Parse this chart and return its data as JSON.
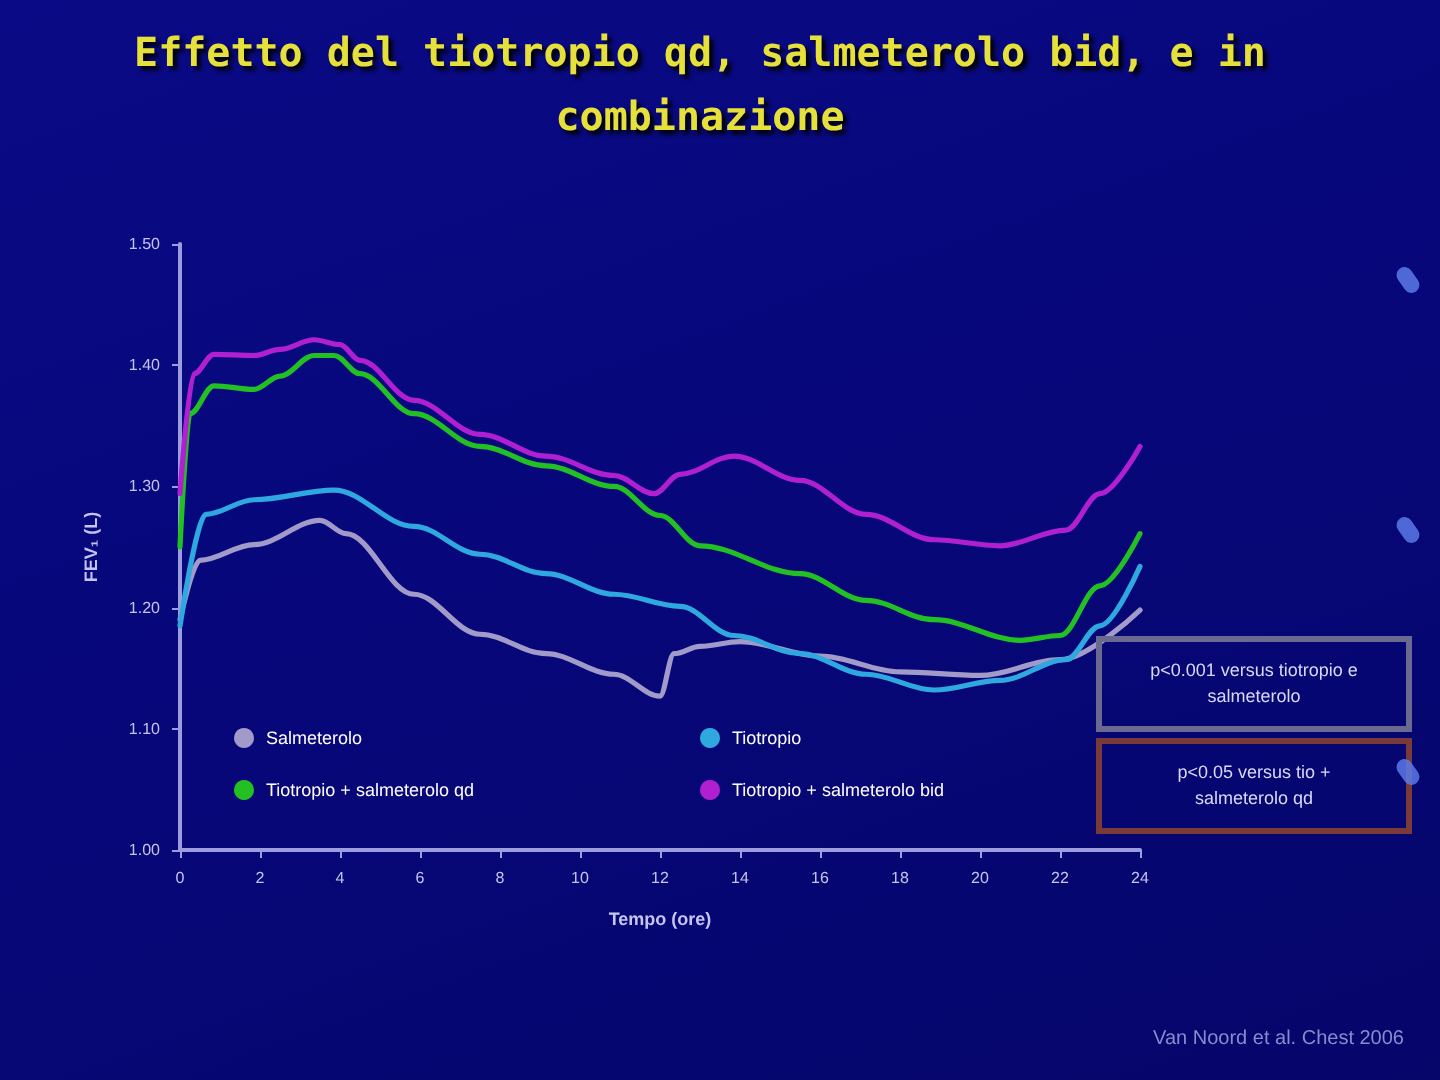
{
  "chart_data": {
    "type": "line",
    "title": "Effetto del tiotropio qd, salmeterolo bid, e in combinazione",
    "xlabel": "Tempo (ore)",
    "ylabel": "FEV₁ (L)",
    "xlim": [
      0,
      24
    ],
    "xticks": [
      0,
      2,
      4,
      6,
      8,
      10,
      12,
      14,
      16,
      18,
      20,
      22,
      24
    ],
    "ylim": [
      1.0,
      1.5
    ],
    "yticks": [
      {
        "value": 1.0,
        "label": "1.00"
      },
      {
        "value": 1.1,
        "label": "1.10"
      },
      {
        "value": 1.2,
        "label": "1.20"
      },
      {
        "value": 1.3,
        "label": "1.30"
      },
      {
        "value": 1.4,
        "label": "1.40"
      },
      {
        "value": 1.5,
        "label": "1.50"
      }
    ],
    "legend": "bottom",
    "marker": "none",
    "line_style": "solid",
    "series": [
      {
        "name": "Salmeterolo",
        "color": "#a29ac8",
        "x": [
          0,
          0.5,
          1.85,
          3.5,
          4.15,
          5.85,
          7.5,
          9.15,
          10.85,
          12,
          12.35,
          13,
          14,
          16,
          18,
          20,
          22,
          24
        ],
        "values": [
          1.19,
          1.239,
          1.252,
          1.272,
          1.261,
          1.211,
          1.178,
          1.162,
          1.145,
          1.127,
          1.162,
          1.168,
          1.172,
          1.16,
          1.147,
          1.144,
          1.157,
          1.198
        ]
      },
      {
        "name": "Tiotropio",
        "color": "#2fa8e0",
        "x": [
          0,
          0.65,
          1.85,
          3.85,
          5.85,
          7.5,
          9.15,
          10.85,
          12.5,
          13.85,
          15.5,
          17.15,
          18.85,
          20.5,
          22.15,
          23,
          24
        ],
        "values": [
          1.185,
          1.277,
          1.289,
          1.297,
          1.267,
          1.244,
          1.228,
          1.211,
          1.201,
          1.177,
          1.162,
          1.145,
          1.132,
          1.14,
          1.157,
          1.185,
          1.234
        ]
      },
      {
        "name": "Tiotropio + salmeterolo qd",
        "color": "#22c022",
        "x": [
          0,
          0.25,
          0.85,
          1.85,
          2.5,
          3.35,
          3.85,
          4.5,
          5.85,
          7.5,
          9.15,
          10.85,
          12,
          13,
          15.5,
          17.15,
          18.85,
          21,
          22,
          23,
          24
        ],
        "values": [
          1.25,
          1.36,
          1.383,
          1.38,
          1.391,
          1.408,
          1.408,
          1.393,
          1.36,
          1.333,
          1.317,
          1.3,
          1.276,
          1.251,
          1.228,
          1.206,
          1.19,
          1.173,
          1.177,
          1.218,
          1.261
        ]
      },
      {
        "name": "Tiotropio + salmeterolo bid",
        "color": "#b020d0",
        "x": [
          0,
          0.35,
          0.85,
          1.85,
          2.5,
          3.35,
          4,
          4.5,
          5.85,
          7.5,
          9.15,
          10.85,
          11.85,
          12.5,
          13.85,
          15.5,
          17.15,
          18.85,
          20.5,
          22.15,
          23,
          24
        ],
        "values": [
          1.294,
          1.393,
          1.409,
          1.408,
          1.413,
          1.421,
          1.417,
          1.404,
          1.371,
          1.343,
          1.325,
          1.309,
          1.294,
          1.31,
          1.325,
          1.305,
          1.277,
          1.256,
          1.251,
          1.264,
          1.294,
          1.333
        ]
      }
    ],
    "annotations": [
      "p<0.001 versus tiotropio e salmeterolo",
      "p<0.05 versus tio + salmeterolo qd",
      "Van Noord et al. Chest 2006"
    ]
  }
}
